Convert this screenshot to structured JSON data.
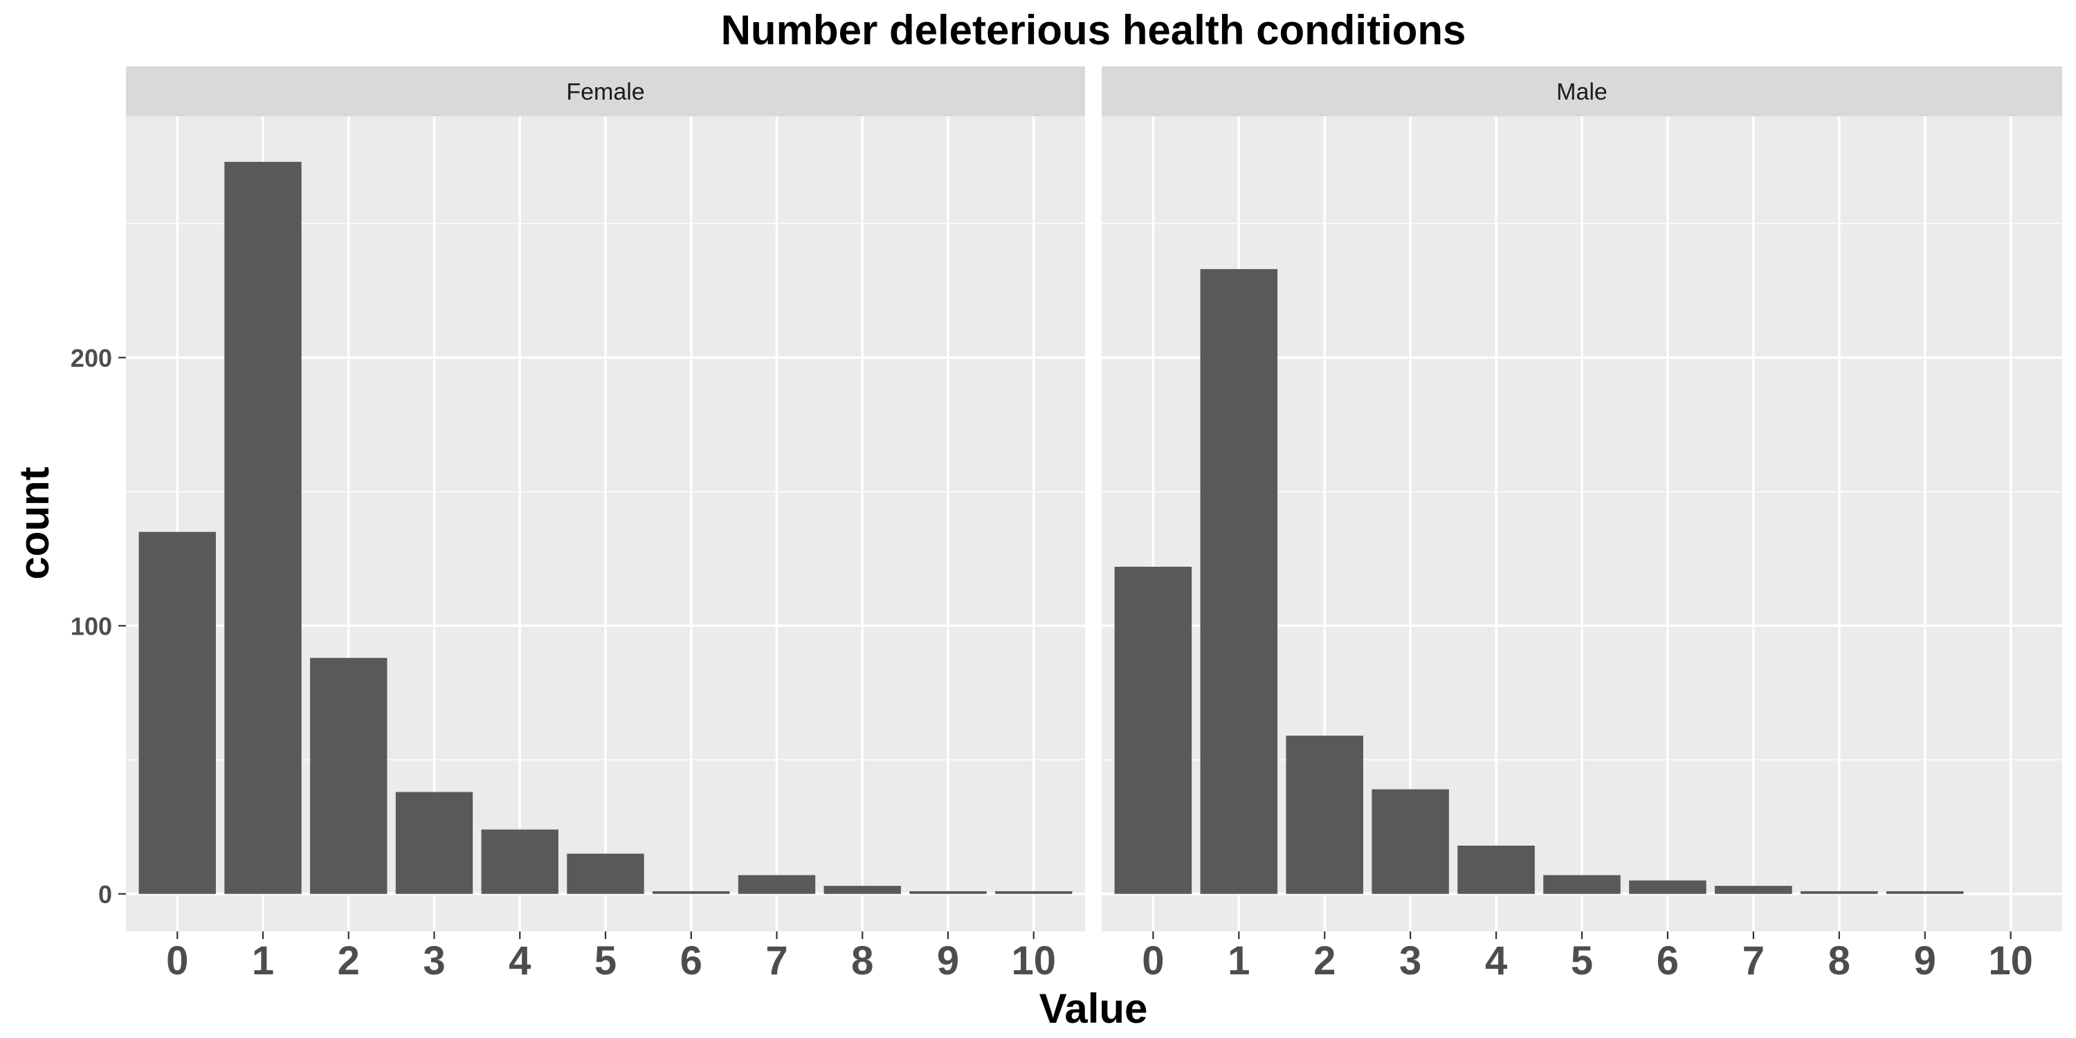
{
  "chart_data": {
    "type": "bar",
    "title": "Number deleterious health conditions",
    "xlabel": "Value",
    "ylabel": "count",
    "categories": [
      "0",
      "1",
      "2",
      "3",
      "4",
      "5",
      "6",
      "7",
      "8",
      "9",
      "10"
    ],
    "ylim": [
      -14,
      290
    ],
    "yticks": [
      "0",
      "100",
      "200"
    ],
    "grid": true,
    "facets": [
      {
        "label": "Female",
        "values": [
          135,
          273,
          88,
          38,
          24,
          15,
          1,
          7,
          3,
          1,
          1
        ]
      },
      {
        "label": "Male",
        "values": [
          122,
          233,
          59,
          39,
          18,
          7,
          5,
          3,
          1,
          1,
          0
        ]
      }
    ],
    "colors": {
      "bar": "#595959",
      "panel_background": "#ebebeb",
      "strip_background": "#d9d9d9",
      "grid": "#ffffff"
    }
  }
}
